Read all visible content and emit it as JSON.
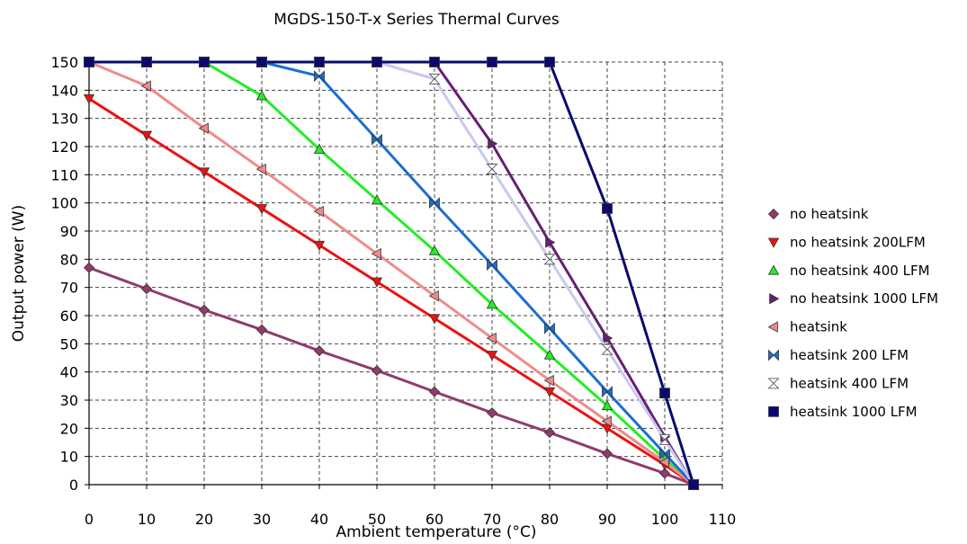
{
  "chart_data": {
    "type": "line",
    "title": "MGDS-150-T-x Series Thermal Curves",
    "xlabel": "Ambient temperature (°C)",
    "ylabel": "Output power (W)",
    "xlim": [
      0,
      110
    ],
    "ylim": [
      0,
      150
    ],
    "x_ticks": [
      0,
      10,
      20,
      30,
      40,
      50,
      60,
      70,
      80,
      90,
      100,
      110
    ],
    "y_ticks": [
      0,
      10,
      20,
      30,
      40,
      50,
      60,
      70,
      80,
      90,
      100,
      110,
      120,
      130,
      140,
      150
    ],
    "grid": true,
    "legend_position": "right",
    "series": [
      {
        "name": "no heatsink",
        "color": "#913a6f",
        "marker": "diamond",
        "x": [
          0,
          10,
          20,
          30,
          40,
          50,
          60,
          70,
          80,
          90,
          100,
          105
        ],
        "y": [
          77,
          69.5,
          62,
          55,
          47.5,
          40.5,
          33,
          25.5,
          18.5,
          11,
          4,
          0
        ]
      },
      {
        "name": "no heatsink 200LFM",
        "color": "#ee1111",
        "marker": "triangle-down",
        "x": [
          0,
          10,
          20,
          30,
          40,
          50,
          60,
          70,
          80,
          90,
          100,
          105
        ],
        "y": [
          137,
          124,
          111,
          98,
          85,
          72,
          59,
          46,
          33,
          20,
          7,
          0
        ]
      },
      {
        "name": "no heatsink 400 LFM",
        "color": "#22ee22",
        "marker": "triangle-up",
        "x": [
          0,
          10,
          20,
          30,
          40,
          50,
          60,
          70,
          80,
          90,
          100,
          105
        ],
        "y": [
          150,
          150,
          150,
          138,
          119,
          101,
          83,
          64,
          46,
          28,
          9,
          0
        ]
      },
      {
        "name": "no heatsink 1000 LFM",
        "color": "#681e75",
        "marker": "triangle-right",
        "x": [
          0,
          10,
          20,
          30,
          40,
          50,
          60,
          70,
          80,
          90,
          100,
          105
        ],
        "y": [
          150,
          150,
          150,
          150,
          150,
          150,
          150,
          121,
          86,
          52,
          17,
          0
        ]
      },
      {
        "name": "heatsink",
        "color": "#f08a8a",
        "marker": "triangle-left",
        "x": [
          0,
          10,
          20,
          30,
          40,
          50,
          60,
          70,
          80,
          90,
          100,
          105
        ],
        "y": [
          150,
          141.5,
          126.5,
          112,
          97,
          82,
          67,
          52,
          37,
          22.5,
          8,
          0
        ]
      },
      {
        "name": "heatsink 200 LFM",
        "color": "#1a6fcf",
        "marker": "bowtie",
        "x": [
          0,
          10,
          20,
          30,
          40,
          50,
          60,
          70,
          80,
          90,
          100,
          105
        ],
        "y": [
          150,
          150,
          150,
          150,
          145,
          122.5,
          100,
          78,
          55.5,
          33,
          11,
          0
        ]
      },
      {
        "name": "heatsink 400 LFM",
        "color": "#c8c8f0",
        "marker": "hourglass",
        "x": [
          0,
          10,
          20,
          30,
          40,
          50,
          60,
          70,
          80,
          90,
          100,
          105
        ],
        "y": [
          150,
          150,
          150,
          150,
          150,
          150,
          144,
          112,
          80,
          48,
          16,
          0
        ]
      },
      {
        "name": "heatsink 1000 LFM",
        "color": "#0a0a6e",
        "marker": "square",
        "x": [
          0,
          10,
          20,
          30,
          40,
          50,
          60,
          70,
          80,
          90,
          100,
          105
        ],
        "y": [
          150,
          150,
          150,
          150,
          150,
          150,
          150,
          150,
          150,
          98,
          32.5,
          0
        ]
      }
    ]
  }
}
